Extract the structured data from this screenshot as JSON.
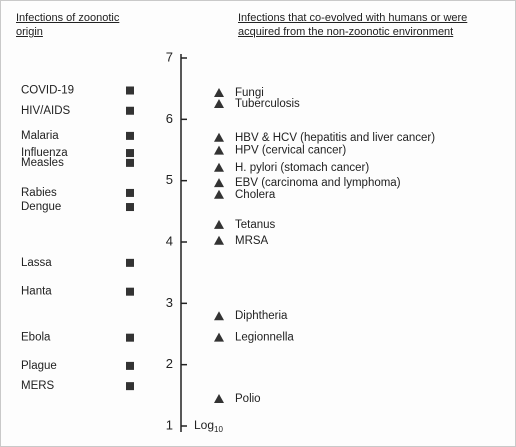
{
  "chart_data": {
    "type": "scatter",
    "ylim": [
      1,
      7
    ],
    "yticks": [
      1,
      2,
      3,
      4,
      5,
      6,
      7
    ],
    "y_label": "Log",
    "y_label_sub": "10",
    "series": [
      {
        "name": "Infections of zoonotic origin",
        "marker": "square",
        "color": "#333333",
        "labels": [
          "COVID-19",
          "HIV/AIDS",
          "Malaria",
          "Influenza",
          "Measles",
          "Rabies",
          "Dengue",
          "Lassa",
          "Hanta",
          "Ebola",
          "Plague",
          "MERS"
        ],
        "values": [
          6.47,
          6.14,
          5.73,
          5.45,
          5.29,
          4.8,
          4.57,
          3.66,
          3.19,
          2.44,
          1.98,
          1.65
        ]
      },
      {
        "name": "Infections that co-evolved with humans or were acquired from the non-zoonotic environment",
        "marker": "triangle",
        "color": "#333333",
        "labels": [
          "Fungi",
          "Tuberculosis",
          "HBV & HCV (hepatitis and liver cancer)",
          "HPV (cervical cancer)",
          "H. pylori (stomach cancer)",
          "EBV (carcinoma and lymphoma)",
          "Cholera",
          "Tetanus",
          "MRSA",
          "Diphtheria",
          "Legionnella",
          "Polio"
        ],
        "values": [
          6.43,
          6.25,
          5.7,
          5.49,
          5.21,
          4.96,
          4.77,
          4.28,
          4.02,
          2.79,
          2.44,
          1.44
        ]
      }
    ]
  }
}
